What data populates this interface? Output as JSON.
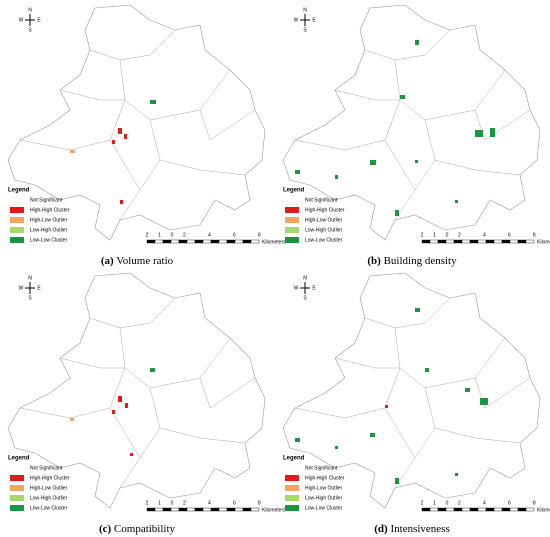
{
  "panels": [
    {
      "label": "(a)",
      "title": "Volume ratio",
      "compass": {
        "n": "N",
        "w": "W",
        "e": "E",
        "s": "S"
      },
      "legend": {
        "title": "Legend",
        "items": [
          "Not Significant",
          "High-High Cluster",
          "High-Low Outlier",
          "Low-High Outlier",
          "Low-Low Cluster"
        ]
      },
      "scale": {
        "ticks": [
          "2",
          "1",
          "0",
          "2",
          "4",
          "6",
          "8"
        ],
        "unit": "Kilometers"
      }
    },
    {
      "label": "(b)",
      "title": "Building density",
      "compass": {
        "n": "N",
        "w": "W",
        "e": "E",
        "s": "S"
      },
      "legend": {
        "title": "Legend",
        "items": [
          "Not Significant",
          "High-High Cluster",
          "High-Low Outlier",
          "Low-High Outlier",
          "Low-Low Cluster"
        ]
      },
      "scale": {
        "ticks": [
          "2",
          "1",
          "0",
          "2",
          "4",
          "6",
          "8"
        ],
        "unit": "Kilometers"
      }
    },
    {
      "label": "(c)",
      "title": "Compatibility",
      "compass": {
        "n": "N",
        "w": "W",
        "e": "E",
        "s": "S"
      },
      "legend": {
        "title": "Legend",
        "items": [
          "Not Significant",
          "High-High Cluster",
          "High-Low Outlier",
          "Low-High Outlier",
          "Low-Low Cluster"
        ]
      },
      "scale": {
        "ticks": [
          "2",
          "1",
          "0",
          "2",
          "4",
          "6",
          "8"
        ],
        "unit": "Kilometers"
      }
    },
    {
      "label": "(d)",
      "title": "Intensiveness",
      "compass": {
        "n": "N",
        "w": "W",
        "e": "E",
        "s": "S"
      },
      "legend": {
        "title": "Legend",
        "items": [
          "Not Significant",
          "High-High Cluster",
          "High-Low Outlier",
          "Low-High Outlier",
          "Low-Low Cluster"
        ]
      },
      "scale": {
        "ticks": [
          "2",
          "1",
          "0",
          "2",
          "4",
          "6",
          "8"
        ],
        "unit": "Kilometers"
      }
    }
  ]
}
